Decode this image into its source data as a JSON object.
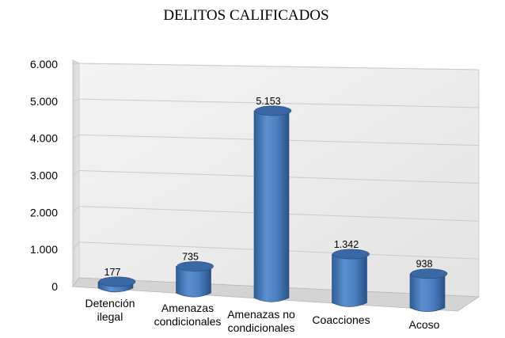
{
  "chart_data": {
    "type": "bar",
    "title": "DELITOS CALIFICADOS",
    "xlabel": "",
    "ylabel": "",
    "categories": [
      "Detención ilegal",
      "Amenazas condicionales",
      "Amenazas no condicionales",
      "Coacciones",
      "Acoso"
    ],
    "values": [
      177,
      735,
      5153,
      1342,
      938
    ],
    "value_labels": [
      "177",
      "735",
      "5.153",
      "1.342",
      "938"
    ],
    "ylim": [
      0,
      6000
    ],
    "yticks": [
      "0",
      "1.000",
      "2.000",
      "3.000",
      "4.000",
      "5.000",
      "6.000"
    ],
    "grid": true,
    "legend": "none",
    "style": "3d-cylinder",
    "bar_color": "#4F81BD",
    "bar_color_dark": "#2E5A8E",
    "bar_color_top": "#3A68A5"
  }
}
